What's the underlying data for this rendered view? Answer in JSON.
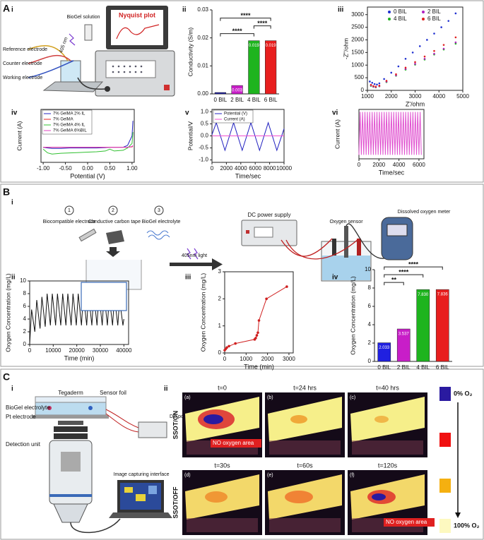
{
  "labels": [
    "A",
    "i",
    "ii",
    "iii",
    "iv",
    "v",
    "vi",
    "B",
    "i",
    "ii",
    "iii",
    "iv",
    "C",
    "i",
    "ii"
  ],
  "diagrams": {
    "a_i": [
      "BioGel solution",
      "Nyquist plot",
      "Reference electrode",
      "Counter electrode",
      "Working electrode",
      "405 nm"
    ],
    "b_i": [
      "1",
      "2",
      "3",
      "Biocompatible electrode",
      "Conductive carbon tape",
      "BioGel electrolyte",
      "405nm light",
      "DC power supply",
      "Oxygen sensor",
      "Dissolved oxygen meter"
    ],
    "c_i": [
      "Tegaderm",
      "Sensor foil",
      "BioGel electrolyte",
      "Pt electrode",
      "DC power supply",
      "Detection unit",
      "Image capturing interface"
    ]
  },
  "photos": {
    "rows": [
      "SSOT/ON",
      "SSOT/OFF"
    ],
    "panels": [
      {
        "tag": "(a)",
        "time": "t=0"
      },
      {
        "tag": "(b)",
        "time": "t=24 hrs"
      },
      {
        "tag": "(c)",
        "time": "t=40 hrs"
      },
      {
        "tag": "(d)",
        "time": "t=30s"
      },
      {
        "tag": "(e)",
        "time": "t=60s"
      },
      {
        "tag": "(f)",
        "time": "t=120s"
      }
    ],
    "note": "NO oxygen area",
    "scale": [
      "0% O₂",
      "100% O₂"
    ]
  },
  "chart_data": [
    {
      "type": "bar",
      "ylabel": "Conductivity (S/m)",
      "categories": [
        "0 BIL",
        "2 BIL",
        "4 BIL",
        "6 BIL"
      ],
      "values": [
        0.0005,
        0.003,
        0.019,
        0.019
      ],
      "value_labels": [
        null,
        "0.003",
        "0.019",
        "0.019"
      ],
      "colors": [
        "#2020a8",
        "#c81ec8",
        "#1eb41e",
        "#e81e1e"
      ],
      "ylim": [
        0,
        0.03
      ],
      "yticks": [
        {
          "value": 0,
          "label": "0.00"
        },
        0.01,
        0.02,
        0.03
      ],
      "annotations": [
        "****",
        "****",
        "****"
      ]
    },
    {
      "type": "scatter",
      "xlabel": "Z'/ohm",
      "ylabel": "-Z''/ohm",
      "xlim": [
        1000,
        5000
      ],
      "xticks": [
        1000,
        2000,
        3000,
        4000,
        5000
      ],
      "ylim": [
        0,
        3300
      ],
      "yticks": [
        0,
        500,
        1000,
        1500,
        2000,
        2500,
        3000
      ],
      "series": [
        {
          "name": "0 BIL",
          "color": "#2030d0",
          "x": [
            1100,
            1200,
            1300,
            1400,
            1500,
            1700,
            2000,
            2300,
            2600,
            2900,
            3200,
            3500,
            3800,
            4100,
            4400,
            4700
          ],
          "values": [
            350,
            300,
            250,
            230,
            280,
            450,
            700,
            950,
            1250,
            1500,
            1750,
            2000,
            2250,
            2500,
            2750,
            3050
          ]
        },
        {
          "name": "4 BIL",
          "color": "#20b020",
          "x": [
            1150,
            1250,
            1350,
            1500,
            1800,
            2200,
            2600,
            3000,
            3400,
            3800,
            4200,
            4700
          ],
          "values": [
            180,
            140,
            120,
            160,
            330,
            580,
            820,
            1020,
            1220,
            1420,
            1620,
            1850
          ]
        },
        {
          "name": "2 BIL",
          "color": "#b020c0",
          "x": [
            1150,
            1250,
            1350,
            1500,
            1800,
            2200,
            2600,
            3000,
            3400,
            3800,
            4200,
            4700
          ],
          "values": [
            200,
            150,
            130,
            170,
            350,
            600,
            850,
            1050,
            1250,
            1450,
            1650,
            1900
          ]
        },
        {
          "name": "6 BIL",
          "color": "#e02020",
          "x": [
            1150,
            1250,
            1350,
            1500,
            1800,
            2200,
            2600,
            3000,
            3400,
            3800,
            4200,
            4700
          ],
          "values": [
            220,
            170,
            150,
            190,
            380,
            640,
            900,
            1120,
            1340,
            1560,
            1800,
            2100
          ]
        }
      ]
    },
    {
      "type": "line",
      "xlabel": "Potential (V)",
      "ylabel": "Current (A)",
      "xlim": [
        -1.05,
        1.05
      ],
      "xticks": [
        {
          "value": -1,
          "label": "-1.00"
        },
        {
          "value": -0.5,
          "label": "-0.50"
        },
        {
          "value": 0,
          "label": "0.00"
        },
        {
          "value": 0.5,
          "label": "0.50"
        },
        {
          "value": 1,
          "label": "1.00"
        }
      ],
      "ylim": [
        -0.4,
        1
      ],
      "x": [
        -1,
        -0.9,
        -0.8,
        -0.6,
        -0.4,
        -0.2,
        0,
        0.2,
        0.4,
        0.5,
        0.6,
        0.8,
        0.9,
        1.0,
        1.02
      ],
      "series": [
        {
          "name": "7% GelMA 2% IL",
          "color": "#2020c0",
          "values": [
            0,
            -0.02,
            -0.03,
            -0.03,
            -0.02,
            -0.02,
            -0.02,
            -0.02,
            -0.01,
            0,
            0,
            0,
            0.05,
            0.3,
            0.7
          ]
        },
        {
          "name": "7% GelMA",
          "color": "#e02020",
          "values": [
            0,
            0,
            0,
            0,
            0,
            0,
            0,
            0,
            0,
            0,
            0,
            0,
            0,
            0.01,
            0.02
          ]
        },
        {
          "name": "7% GelMA 4% IL",
          "color": "#30c030",
          "values": [
            -0.05,
            -0.15,
            -0.18,
            -0.16,
            -0.15,
            -0.14,
            -0.13,
            -0.12,
            -0.1,
            -0.05,
            -0.1,
            -0.08,
            -0.02,
            0.1,
            0.4
          ]
        },
        {
          "name": "7% GelMA 6%BIL",
          "color": "#e040c0",
          "values": [
            0,
            0,
            0,
            0,
            0,
            0,
            0,
            0,
            0,
            0,
            0,
            0,
            0,
            0.02,
            0.05
          ]
        }
      ]
    },
    {
      "type": "line",
      "xlabel": "Time/sec",
      "ylabel": "Potential/V",
      "xlim": [
        0,
        10000
      ],
      "xticks": [
        0,
        2000,
        4000,
        6000,
        8000,
        10000
      ],
      "ylim": [
        -1.1,
        1.1
      ],
      "yticks": [
        {
          "value": -1,
          "label": "-1.0"
        },
        -0.5,
        {
          "value": 0,
          "label": "0.0"
        },
        0.5,
        {
          "value": 1,
          "label": "1.0"
        }
      ],
      "x": [
        0,
        600,
        1800,
        3000,
        4200,
        5400,
        6600,
        7800,
        9000,
        10000
      ],
      "series": [
        {
          "name": "Potential (V)",
          "color": "#2020c0",
          "values": [
            0.05,
            0.55,
            -0.6,
            0.55,
            -0.6,
            0.55,
            -0.6,
            0.55,
            -0.6,
            0.3
          ]
        },
        {
          "name": "Current (A)",
          "color": "#f050d0",
          "values": [
            0,
            0,
            0,
            0,
            0,
            0,
            0,
            0,
            0,
            0
          ]
        }
      ]
    },
    {
      "type": "line",
      "xlabel": "Time/sec",
      "ylabel": "Current (A)",
      "xlim": [
        0,
        6500
      ],
      "xticks": [
        0,
        2000,
        4000,
        6000
      ],
      "ylim": [
        0,
        1
      ],
      "color": "#e050d0",
      "x": [
        0,
        120,
        240,
        360,
        480,
        600,
        720,
        840,
        960,
        1080,
        1200,
        1320,
        1440,
        1560,
        1680,
        1800,
        1920,
        2040,
        2160,
        2280,
        2400,
        2520,
        2640,
        2760,
        2880,
        3000,
        3120,
        3240,
        3360,
        3480,
        3600,
        3720,
        3840,
        3960,
        4080,
        4200,
        4320,
        4440,
        4560,
        4680,
        4800,
        4920,
        5040,
        5160,
        5280,
        5400,
        5520,
        5640,
        5760,
        5880,
        6000,
        6120,
        6240
      ],
      "values": [
        0.08,
        0.95,
        0.08,
        0.95,
        0.08,
        0.95,
        0.08,
        0.95,
        0.08,
        0.95,
        0.08,
        0.95,
        0.08,
        0.95,
        0.08,
        0.95,
        0.08,
        0.95,
        0.08,
        0.95,
        0.08,
        0.95,
        0.08,
        0.95,
        0.08,
        0.95,
        0.08,
        0.95,
        0.08,
        0.95,
        0.08,
        0.95,
        0.08,
        0.95,
        0.08,
        0.95,
        0.08,
        0.95,
        0.08,
        0.95,
        0.08,
        0.95,
        0.08,
        0.95,
        0.08,
        0.95,
        0.08,
        0.95,
        0.08,
        0.95,
        0.08,
        0.95,
        0.08
      ]
    },
    {
      "type": "line",
      "xlabel": "Time (min)",
      "ylabel": "Oxygen Concentration (mg/L)",
      "xlim": [
        0,
        42000
      ],
      "xticks": [
        0,
        10000,
        20000,
        30000,
        40000
      ],
      "ylim": [
        0,
        10
      ],
      "yticks": [
        0,
        2,
        4,
        6,
        8,
        10
      ],
      "color": "#111111",
      "x": [
        0,
        800,
        2200,
        3000,
        4400,
        5200,
        6600,
        7400,
        8800,
        9600,
        11000,
        11800,
        13200,
        14000,
        15400,
        16200,
        17600,
        18400,
        19800,
        20600,
        22000,
        22800,
        24200,
        25000,
        26400,
        27200,
        28600,
        29400,
        30800,
        31600,
        33000,
        33800,
        35200,
        36000,
        37400,
        38200,
        39600,
        40000
      ],
      "values": [
        0,
        5.5,
        2,
        7,
        2.5,
        7.5,
        2.8,
        8,
        3,
        8,
        3,
        8,
        3,
        8,
        3,
        8,
        3,
        8,
        3,
        8,
        3,
        8,
        3,
        8,
        3,
        8,
        3,
        8,
        3,
        8,
        3,
        7.5,
        3,
        7.5,
        3,
        7,
        3,
        4
      ]
    },
    {
      "type": "line",
      "markers": true,
      "xlabel": "Time (min)",
      "ylabel": "Oxygen Concentration (mg/L)",
      "xlim": [
        0,
        3200
      ],
      "xticks": [
        0,
        1000,
        2000,
        3000
      ],
      "ylim": [
        0,
        3
      ],
      "yticks": [
        0,
        1,
        2,
        3
      ],
      "color": "#d02020",
      "x": [
        0,
        50,
        100,
        200,
        500,
        1400,
        1450,
        1500,
        1550,
        1600,
        1950,
        2900
      ],
      "values": [
        0.1,
        0.15,
        0.2,
        0.25,
        0.35,
        0.5,
        0.55,
        0.65,
        0.75,
        1.2,
        2.0,
        2.45
      ]
    },
    {
      "type": "bar",
      "ylabel": "Oxygen Concentration (mg/L)",
      "categories": [
        "0 BIL",
        "2 BIL",
        "4 BIL",
        "6 BIL"
      ],
      "values": [
        2.033,
        3.537,
        7.83,
        7.836
      ],
      "value_labels": [
        "2.033",
        "3.537",
        "7.830",
        "7.836"
      ],
      "colors": [
        "#2020e0",
        "#c81ec8",
        "#1eb41e",
        "#e81e1e"
      ],
      "ylim": [
        0,
        10
      ],
      "yticks": [
        0,
        2,
        4,
        6,
        8,
        10
      ],
      "annotations": [
        "**",
        "****",
        "****"
      ]
    }
  ]
}
